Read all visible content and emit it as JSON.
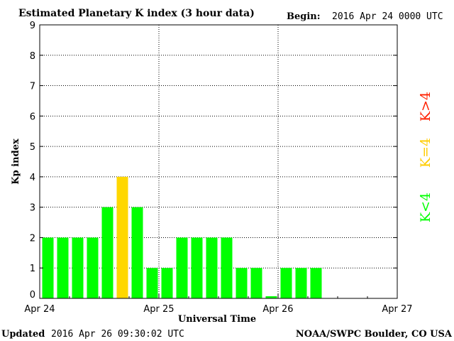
{
  "header": {
    "title": "Estimated Planetary K index (3 hour data)",
    "begin_label": "Begin:",
    "begin_value": "2016 Apr 24 0000 UTC"
  },
  "footer": {
    "updated_label": "Updated",
    "updated_value": "2016 Apr 26 09:30:02 UTC",
    "source": "NOAA/SWPC Boulder, CO USA"
  },
  "legend": {
    "low": "K<4",
    "mid": "K=4",
    "high": "K>4"
  },
  "colors": {
    "low": "#00ff00",
    "mid": "#ffd700",
    "high": "#ff2000",
    "mid_label": "#ffcc00"
  },
  "chart_data": {
    "type": "bar",
    "ylabel": "Kp index",
    "xlabel": "Universal Time",
    "ylim": [
      0,
      9
    ],
    "yticks": [
      "0",
      "1",
      "2",
      "3",
      "4",
      "5",
      "6",
      "7",
      "8",
      "9"
    ],
    "xlim_days": [
      0,
      3
    ],
    "xticks": [
      {
        "label": "Apr 24",
        "day": 0
      },
      {
        "label": "Apr 25",
        "day": 1
      },
      {
        "label": "Apr 26",
        "day": 2
      },
      {
        "label": "Apr 27",
        "day": 3
      }
    ],
    "interval_hours": 3,
    "values": [
      2,
      2,
      2,
      2,
      3,
      4,
      3,
      1,
      1,
      2,
      2,
      2,
      2,
      1,
      1,
      0.07,
      1,
      1,
      1
    ],
    "grid": true
  }
}
